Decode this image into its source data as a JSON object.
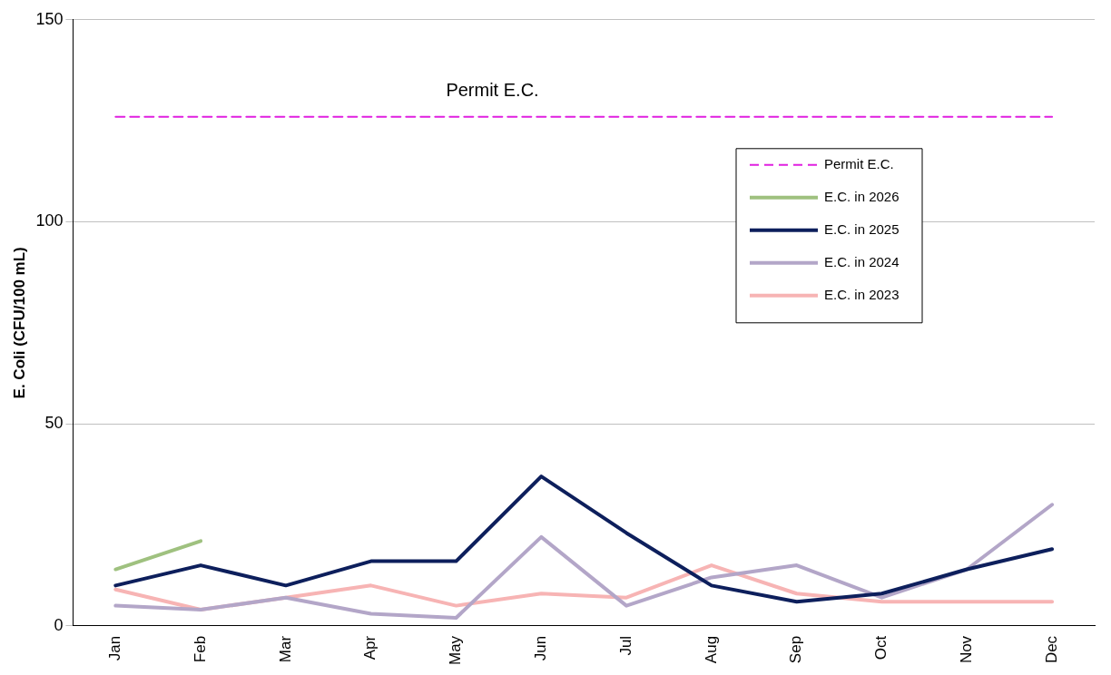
{
  "chart_data": {
    "type": "line",
    "ylabel": "E. Coli (CFU/100 mL)",
    "categories": [
      "Jan",
      "Feb",
      "Mar",
      "Apr",
      "May",
      "Jun",
      "Jul",
      "Aug",
      "Sep",
      "Oct",
      "Nov",
      "Dec"
    ],
    "series": [
      {
        "name": "Permit E.C.",
        "color": "#e020e0",
        "line_style": "dashed",
        "values": [
          126,
          126,
          126,
          126,
          126,
          126,
          126,
          126,
          126,
          126,
          126,
          126
        ]
      },
      {
        "name": "E.C. in 2026",
        "color": "#9fc17f",
        "values": [
          14,
          21,
          null,
          null,
          null,
          null,
          null,
          null,
          null,
          null,
          null,
          null
        ]
      },
      {
        "name": "E.C. in 2025",
        "color": "#0d1f5c",
        "values": [
          10,
          15,
          10,
          16,
          16,
          37,
          23,
          10,
          6,
          8,
          14,
          19
        ]
      },
      {
        "name": "E.C. in 2024",
        "color": "#b3a6c8",
        "values": [
          5,
          4,
          7,
          3,
          2,
          22,
          5,
          12,
          15,
          7,
          14,
          30
        ]
      },
      {
        "name": "E.C. in 2023",
        "color": "#f7b4b4",
        "values": [
          9,
          4,
          7,
          10,
          5,
          8,
          7,
          15,
          8,
          6,
          6,
          6
        ]
      }
    ],
    "annotations": [
      {
        "text": "Permit E.C.",
        "x": "May",
        "y": 126
      }
    ],
    "ylim": [
      0,
      150
    ],
    "yticks": [
      0,
      50,
      100,
      150
    ],
    "grid": "y",
    "legend": "top right",
    "marker": "none"
  }
}
